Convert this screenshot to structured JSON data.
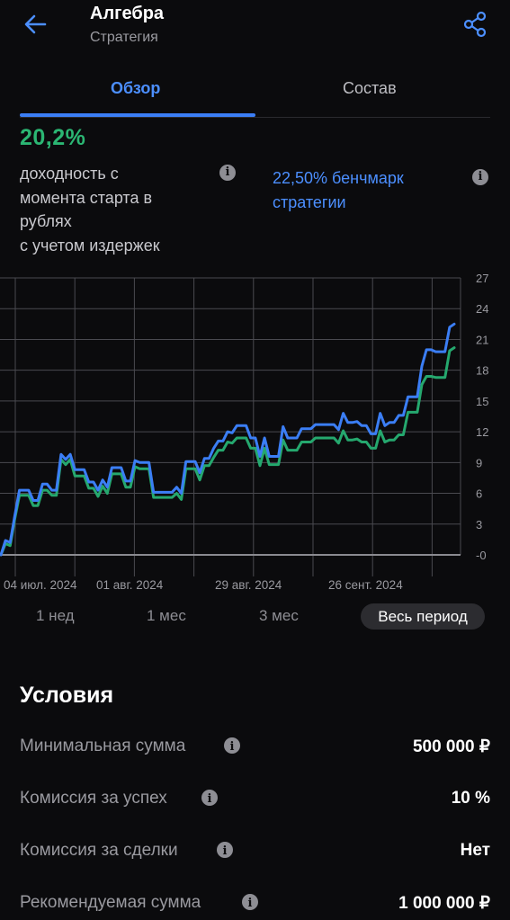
{
  "header": {
    "title": "Алгебра",
    "subtitle": "Стратегия"
  },
  "tabs": [
    {
      "label": "Обзор",
      "active": true
    },
    {
      "label": "Состав",
      "active": false
    }
  ],
  "overview": {
    "return_value": "20,2%",
    "return_desc_lines": [
      "доходность с",
      "момента старта в",
      "рублях",
      "с учетом издержек"
    ],
    "benchmark_lines": [
      "22,50% бенчмарк",
      "стратегии"
    ]
  },
  "colors": {
    "accent": "#4c8fff",
    "positive": "#2bb673",
    "strategy_line": "#3b7ef5",
    "benchmark_line": "#25a86e"
  },
  "chart_data": {
    "type": "line",
    "x_ticks": [
      "04 июл. 2024",
      "01 авг. 2024",
      "29 авг. 2024",
      "26 сент. 2024"
    ],
    "y_ticks": [
      "27",
      "24",
      "21",
      "18",
      "15",
      "12",
      "9",
      "6",
      "3",
      "-0"
    ],
    "ylim": [
      0,
      27
    ],
    "series": [
      {
        "values": [
          0,
          1.4,
          1.2,
          3.8,
          6.3,
          6.3,
          6.3,
          5.3,
          5.3,
          6.9,
          6.9,
          6.3,
          6.3,
          9.8,
          9.3,
          9.8,
          8.3,
          8.3,
          8.3,
          7.1,
          7.1,
          6.3,
          7.3,
          6.6,
          8.5,
          8.5,
          8.5,
          7.2,
          7.2,
          9.2,
          9.0,
          9.0,
          9.0,
          6.1,
          6.1,
          6.1,
          6.1,
          6.1,
          6.6,
          6.0,
          9.1,
          9.1,
          9.1,
          8.0,
          9.4,
          9.4,
          10.4,
          11.1,
          11.1,
          12.0,
          11.9,
          12.6,
          12.6,
          12.6,
          11.4,
          11.4,
          9.6,
          11.4,
          9.6,
          9.6,
          9.6,
          12.5,
          11.4,
          11.4,
          11.4,
          12.3,
          12.3,
          12.3,
          12.7,
          12.7,
          12.7,
          12.7,
          12.7,
          12.2,
          13.8,
          12.9,
          12.9,
          13.0,
          12.6,
          12.6,
          11.8,
          11.8,
          13.8,
          12.6,
          12.9,
          12.9,
          13.6,
          13.6,
          15.4,
          15.4,
          15.4,
          18.4,
          20.0,
          20.0,
          19.8,
          19.8,
          19.8,
          22.2,
          22.5
        ],
        "color": "#3b7ef5"
      },
      {
        "values": [
          0,
          1.1,
          0.9,
          3.5,
          5.8,
          5.8,
          5.8,
          4.8,
          4.8,
          6.3,
          6.3,
          5.8,
          5.8,
          9.3,
          8.8,
          9.3,
          7.7,
          7.7,
          7.7,
          6.5,
          6.5,
          5.7,
          6.7,
          6.0,
          7.9,
          7.9,
          7.9,
          6.6,
          6.6,
          8.6,
          8.4,
          8.4,
          8.4,
          5.6,
          5.6,
          5.6,
          5.6,
          5.6,
          6.0,
          5.4,
          8.4,
          8.4,
          8.4,
          7.3,
          8.7,
          8.7,
          9.5,
          10.2,
          10.2,
          11.0,
          10.9,
          11.4,
          11.4,
          11.4,
          10.4,
          10.4,
          8.7,
          10.4,
          8.8,
          8.8,
          8.8,
          11.2,
          10.2,
          10.2,
          10.2,
          11.0,
          11.0,
          11.0,
          11.4,
          11.4,
          11.4,
          11.4,
          11.4,
          10.9,
          12.1,
          11.2,
          11.2,
          11.3,
          11.0,
          11.0,
          10.4,
          10.4,
          12.1,
          11.0,
          11.2,
          11.2,
          11.7,
          11.7,
          13.9,
          13.9,
          13.9,
          16.6,
          17.4,
          17.4,
          17.3,
          17.3,
          17.3,
          19.9,
          20.2
        ],
        "color": "#25a86e"
      }
    ]
  },
  "periods": {
    "week": "1 нед",
    "month": "1 мес",
    "three_months": "3 мес",
    "all": "Весь период",
    "selected": "Весь период"
  },
  "conditions": {
    "title": "Условия",
    "rows": [
      {
        "label": "Минимальная сумма",
        "value": "500 000 ₽"
      },
      {
        "label": "Комиссия за успех",
        "value": "10 %"
      },
      {
        "label": "Комиссия за сделки",
        "value": "Нет"
      },
      {
        "label": "Рекомендуемая сумма",
        "value": "1 000 000 ₽"
      }
    ]
  }
}
